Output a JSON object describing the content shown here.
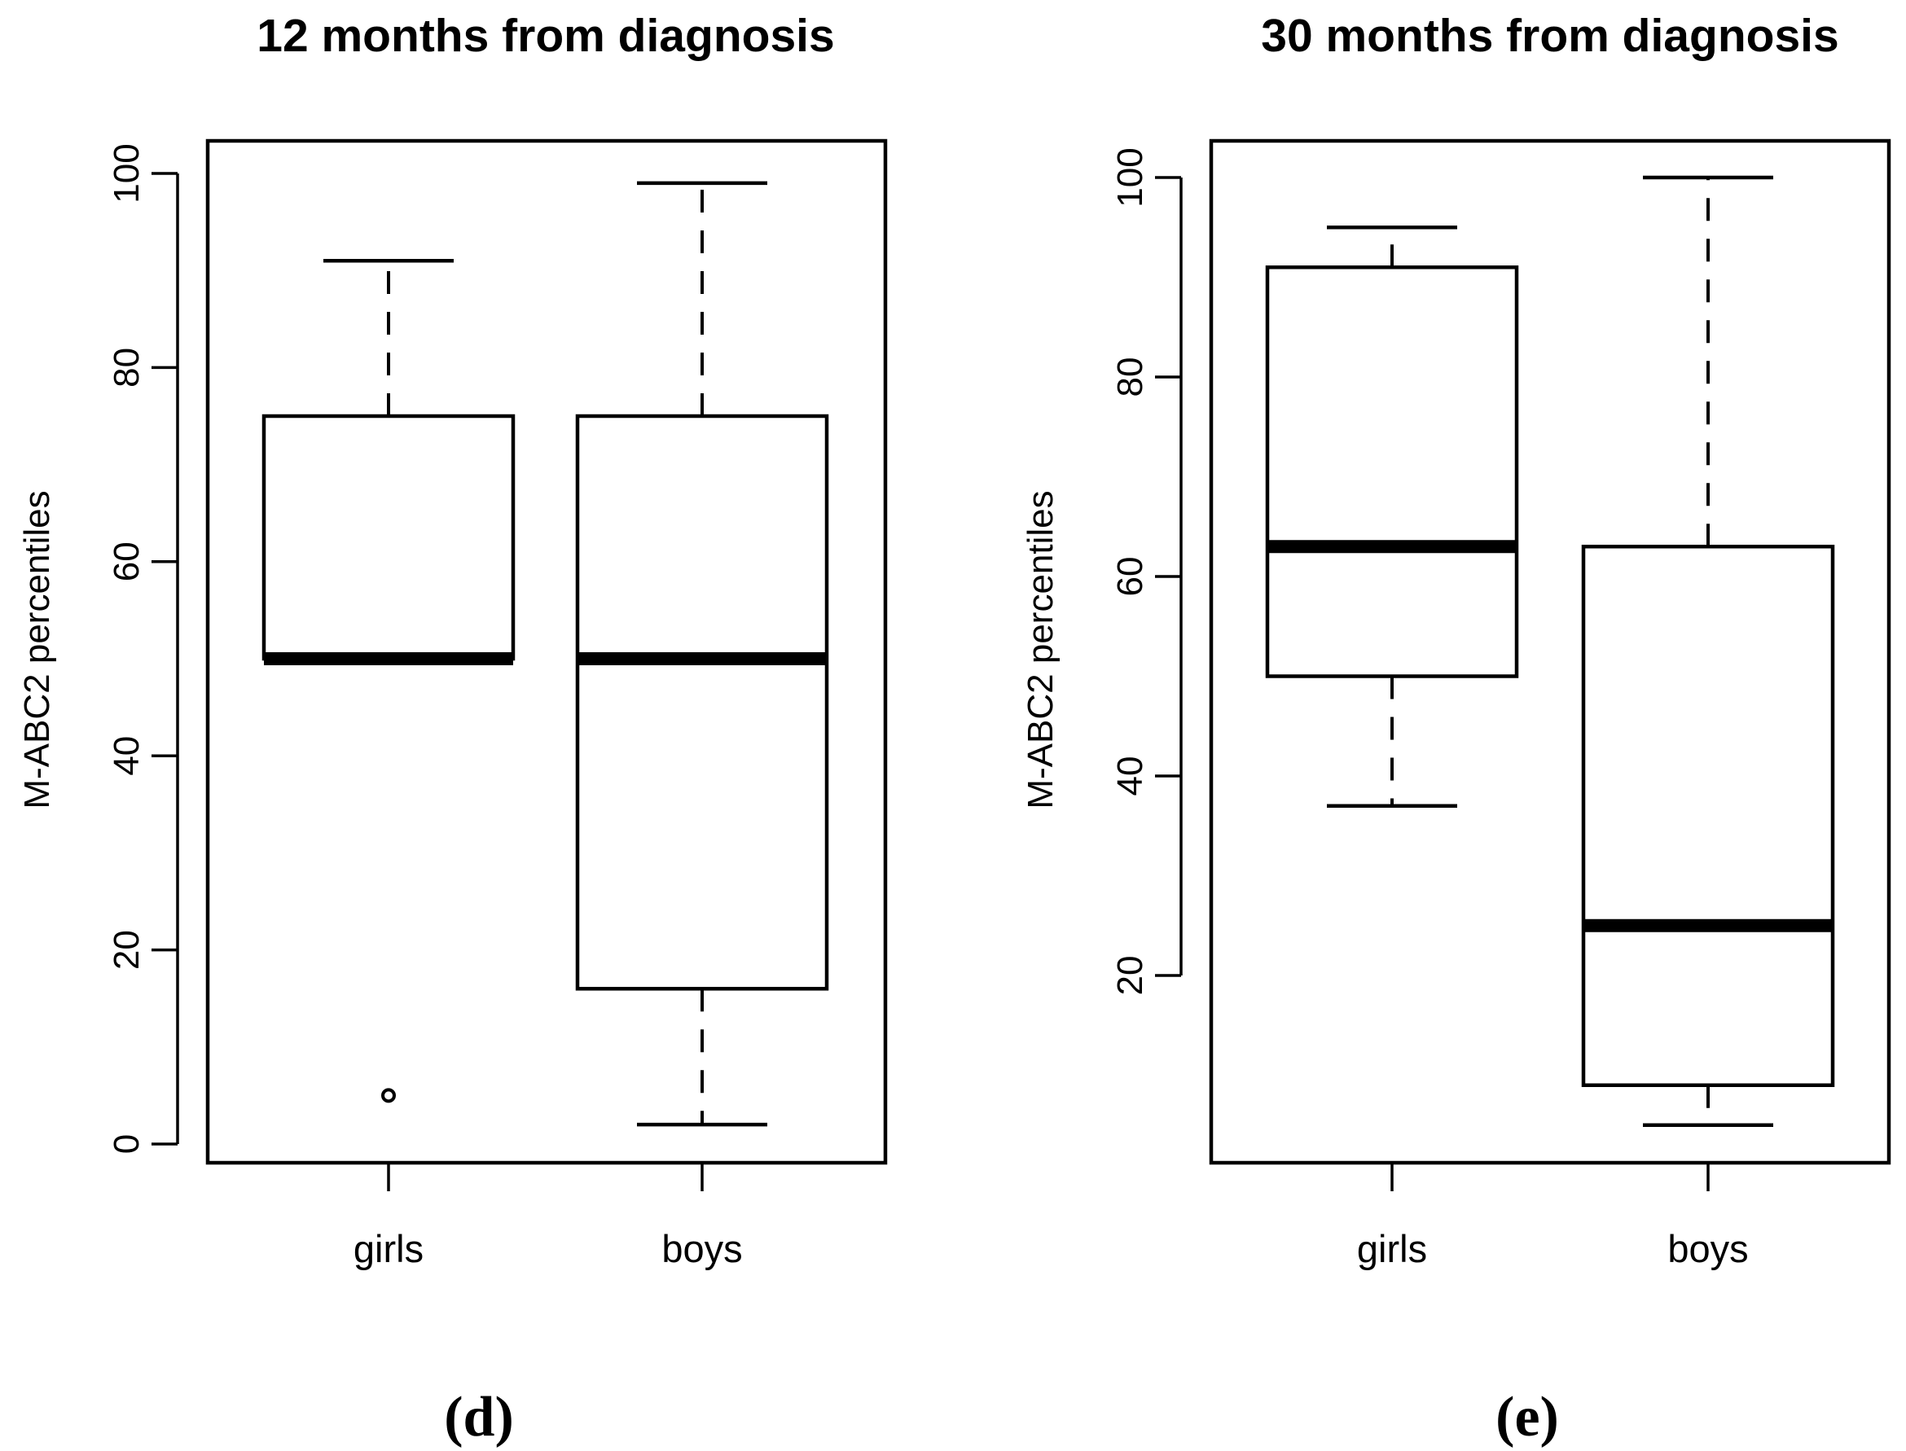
{
  "chart_data": [
    {
      "type": "boxplot",
      "panel_label": "(d)",
      "title": "12 months from diagnosis",
      "xlabel": "",
      "ylabel": "M-ABC2 percentiles",
      "ylim": [
        0,
        100
      ],
      "yticks": [
        0,
        20,
        40,
        60,
        80,
        100
      ],
      "categories": [
        "girls",
        "boys"
      ],
      "boxes": [
        {
          "name": "girls",
          "whisker_low": 50,
          "q1": 50,
          "median": 50,
          "q3": 75,
          "whisker_high": 91,
          "outliers": [
            5
          ]
        },
        {
          "name": "boys",
          "whisker_low": 2,
          "q1": 16,
          "median": 50,
          "q3": 75,
          "whisker_high": 99,
          "outliers": []
        }
      ]
    },
    {
      "type": "boxplot",
      "panel_label": "(e)",
      "title": "30 months from diagnosis",
      "xlabel": "",
      "ylabel": "M-ABC2 percentiles",
      "ylim": [
        5,
        100
      ],
      "yticks": [
        20,
        40,
        60,
        80,
        100
      ],
      "categories": [
        "girls",
        "boys"
      ],
      "boxes": [
        {
          "name": "girls",
          "whisker_low": 37,
          "q1": 50,
          "median": 63,
          "q3": 91,
          "whisker_high": 95,
          "outliers": []
        },
        {
          "name": "boys",
          "whisker_low": 5,
          "q1": 9,
          "median": 25,
          "q3": 63,
          "whisker_high": 100,
          "outliers": []
        }
      ]
    }
  ]
}
